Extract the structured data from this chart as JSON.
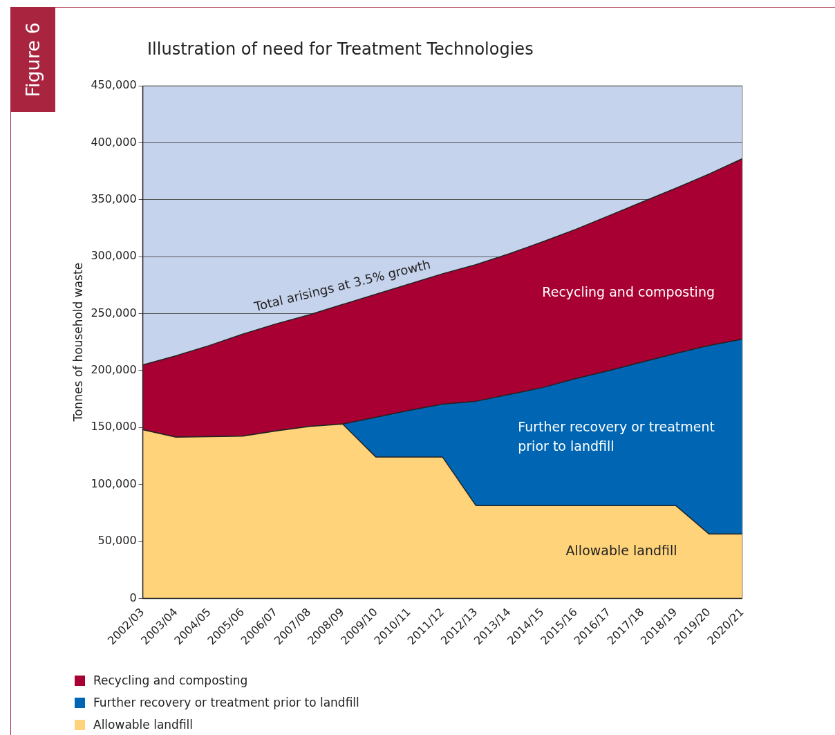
{
  "chart_data": {
    "type": "area",
    "title": "Illustration of need for Treatment Technologies",
    "ylabel": "Tonnes of household waste",
    "categories": [
      "2002/03",
      "2003/04",
      "2004/05",
      "2005/06",
      "2006/07",
      "2007/08",
      "2008/09",
      "2009/10",
      "2010/11",
      "2011/12",
      "2012/13",
      "2013/14",
      "2014/15",
      "2015/16",
      "2016/17",
      "2017/18",
      "2018/19",
      "2019/20",
      "2020/21"
    ],
    "stacked": true,
    "series": [
      {
        "name": "Allowable landfill",
        "color": "#fed37a",
        "values": [
          148000,
          141500,
          142000,
          142500,
          147000,
          151000,
          153000,
          124000,
          124000,
          124000,
          81500,
          81500,
          81500,
          81500,
          81500,
          81500,
          81500,
          56500,
          56500
        ]
      },
      {
        "name": "Further recovery or treatment prior to landfill",
        "color": "#0066b3",
        "values": [
          0,
          0,
          0,
          0,
          0,
          0,
          0,
          35000,
          41000,
          46500,
          91500,
          97500,
          103500,
          111500,
          118500,
          126000,
          133500,
          165500,
          171000
        ]
      },
      {
        "name": "Recycling and composting",
        "color": "#a80032",
        "values": [
          57000,
          71500,
          80000,
          89500,
          94000,
          98000,
          105000,
          108000,
          111000,
          114500,
          120000,
          123500,
          128000,
          131000,
          136000,
          140500,
          145000,
          150500,
          158500
        ]
      }
    ],
    "ylim": [
      0,
      450000
    ],
    "yticks": [
      0,
      {
        "value": 50000,
        "label": "50,000"
      },
      {
        "value": 100000,
        "label": "100,000"
      },
      {
        "value": 150000,
        "label": "150,000"
      },
      {
        "value": 200000,
        "label": "200,000"
      },
      {
        "value": 250000,
        "label": "250,000"
      },
      {
        "value": 300000,
        "label": "300,000"
      },
      {
        "value": 350000,
        "label": "350,000"
      },
      {
        "value": 400000,
        "label": "400,000"
      },
      {
        "value": 450000,
        "label": "450,000"
      }
    ],
    "grid": "y",
    "legend": "bottom left",
    "annotations": [
      "Figure 6",
      "Total arisings at 3.5% growth"
    ]
  }
}
